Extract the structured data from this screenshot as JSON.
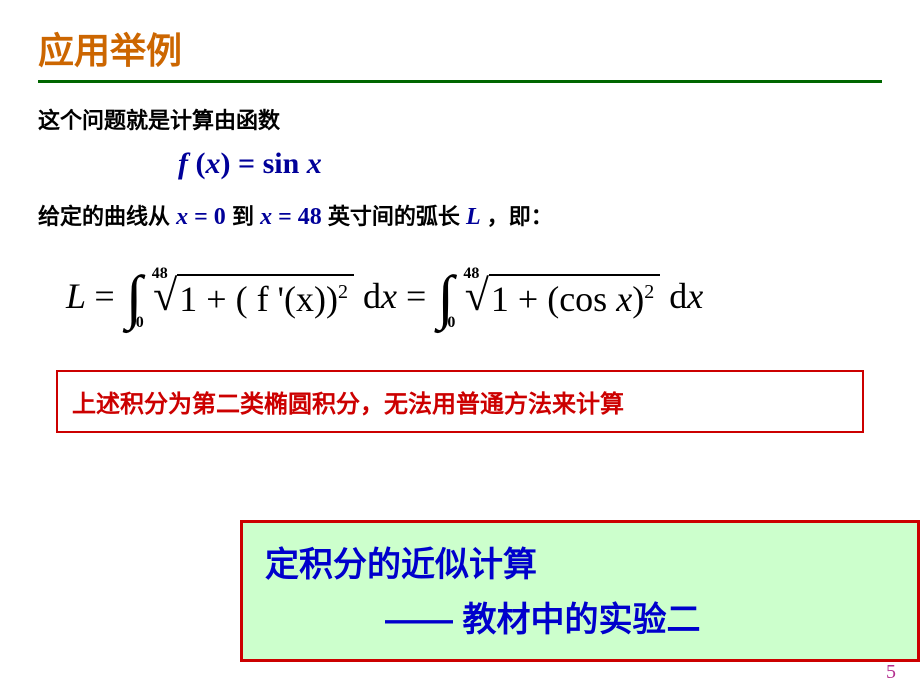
{
  "colors": {
    "title": "#cc6600",
    "underline": "#006600",
    "formula_blue": "#000099",
    "note_border": "#cc0000",
    "note_text": "#cc0000",
    "highlight_border": "#cc0000",
    "highlight_bg": "#ccffcc",
    "highlight_text": "#0000cc",
    "pagenum": "#b32d8e"
  },
  "title": "应用举例",
  "intro": "这个问题就是计算由函数",
  "fx": {
    "lhs_f": "f",
    "lhs_open": " (",
    "lhs_x": "x",
    "lhs_close": ") = ",
    "rhs_sin": "sin ",
    "rhs_x": "x"
  },
  "desc": {
    "p1": "给定的曲线从 ",
    "x1": "x",
    "eq1": " = 0",
    "p2": " 到 ",
    "x2": "x",
    "eq2": " = 48",
    "p3": " 英寸间的弧长 ",
    "L": "L",
    "p4": "，即："
  },
  "eq": {
    "L": "L",
    "eqs": " = ",
    "upper": "48",
    "lower": "0",
    "rad1": "1 + ( f '(x))",
    "sq": "2",
    "dx": " d",
    "x": "x",
    "rad2_a": "1 + (",
    "rad2_cos": "cos ",
    "rad2_x": "x",
    "rad2_b": ")"
  },
  "note": "上述积分为第二类椭圆积分，无法用普通方法来计算",
  "highlight": {
    "line1": "定积分的近似计算",
    "line2": "—— 教材中的实验二"
  },
  "page": "5"
}
